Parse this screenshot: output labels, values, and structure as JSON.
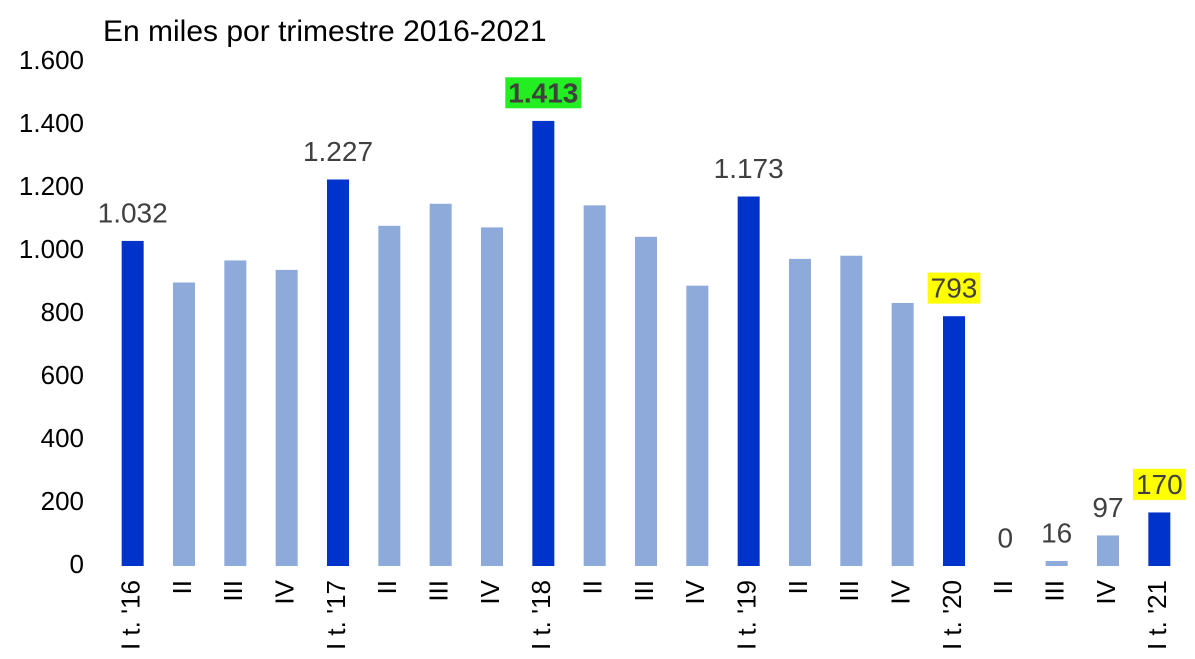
{
  "chart_data": {
    "type": "bar",
    "title": "En miles por trimestre 2016-2021",
    "categories": [
      "I t. '16",
      "II",
      "III",
      "IV",
      "I t. '17",
      "II",
      "III",
      "IV",
      "I t. '18",
      "II",
      "III",
      "IV",
      "I t. '19",
      "II",
      "III",
      "IV",
      "I t. '20",
      "II",
      "III",
      "IV",
      "I t. '21"
    ],
    "values": [
      1032,
      900,
      970,
      940,
      1227,
      1080,
      1150,
      1075,
      1413,
      1145,
      1045,
      890,
      1173,
      975,
      985,
      835,
      793,
      0,
      16,
      97,
      170
    ],
    "value_labels": [
      "1.032",
      null,
      null,
      null,
      "1.227",
      null,
      null,
      null,
      "1.413",
      null,
      null,
      null,
      "1.173",
      null,
      null,
      null,
      "793",
      "0",
      "16",
      "97",
      "170"
    ],
    "label_highlight": [
      null,
      null,
      null,
      null,
      null,
      null,
      null,
      null,
      "#22ee22",
      null,
      null,
      null,
      null,
      null,
      null,
      null,
      "#ffff00",
      null,
      null,
      null,
      "#ffff00"
    ],
    "colors": [
      "#0033cc",
      "#8eaadb",
      "#8eaadb",
      "#8eaadb",
      "#0033cc",
      "#8eaadb",
      "#8eaadb",
      "#8eaadb",
      "#0033cc",
      "#8eaadb",
      "#8eaadb",
      "#8eaadb",
      "#0033cc",
      "#8eaadb",
      "#8eaadb",
      "#8eaadb",
      "#0033cc",
      "#8eaadb",
      "#8eaadb",
      "#8eaadb",
      "#0033cc"
    ],
    "ylim": [
      0,
      1600
    ],
    "yticks": [
      0,
      200,
      400,
      600,
      800,
      {
        "value": 1000,
        "label": "1.000"
      },
      {
        "value": 1200,
        "label": "1.200"
      },
      {
        "value": 1400,
        "label": "1.400"
      },
      {
        "value": 1600,
        "label": "1.600"
      }
    ],
    "grid": false
  }
}
